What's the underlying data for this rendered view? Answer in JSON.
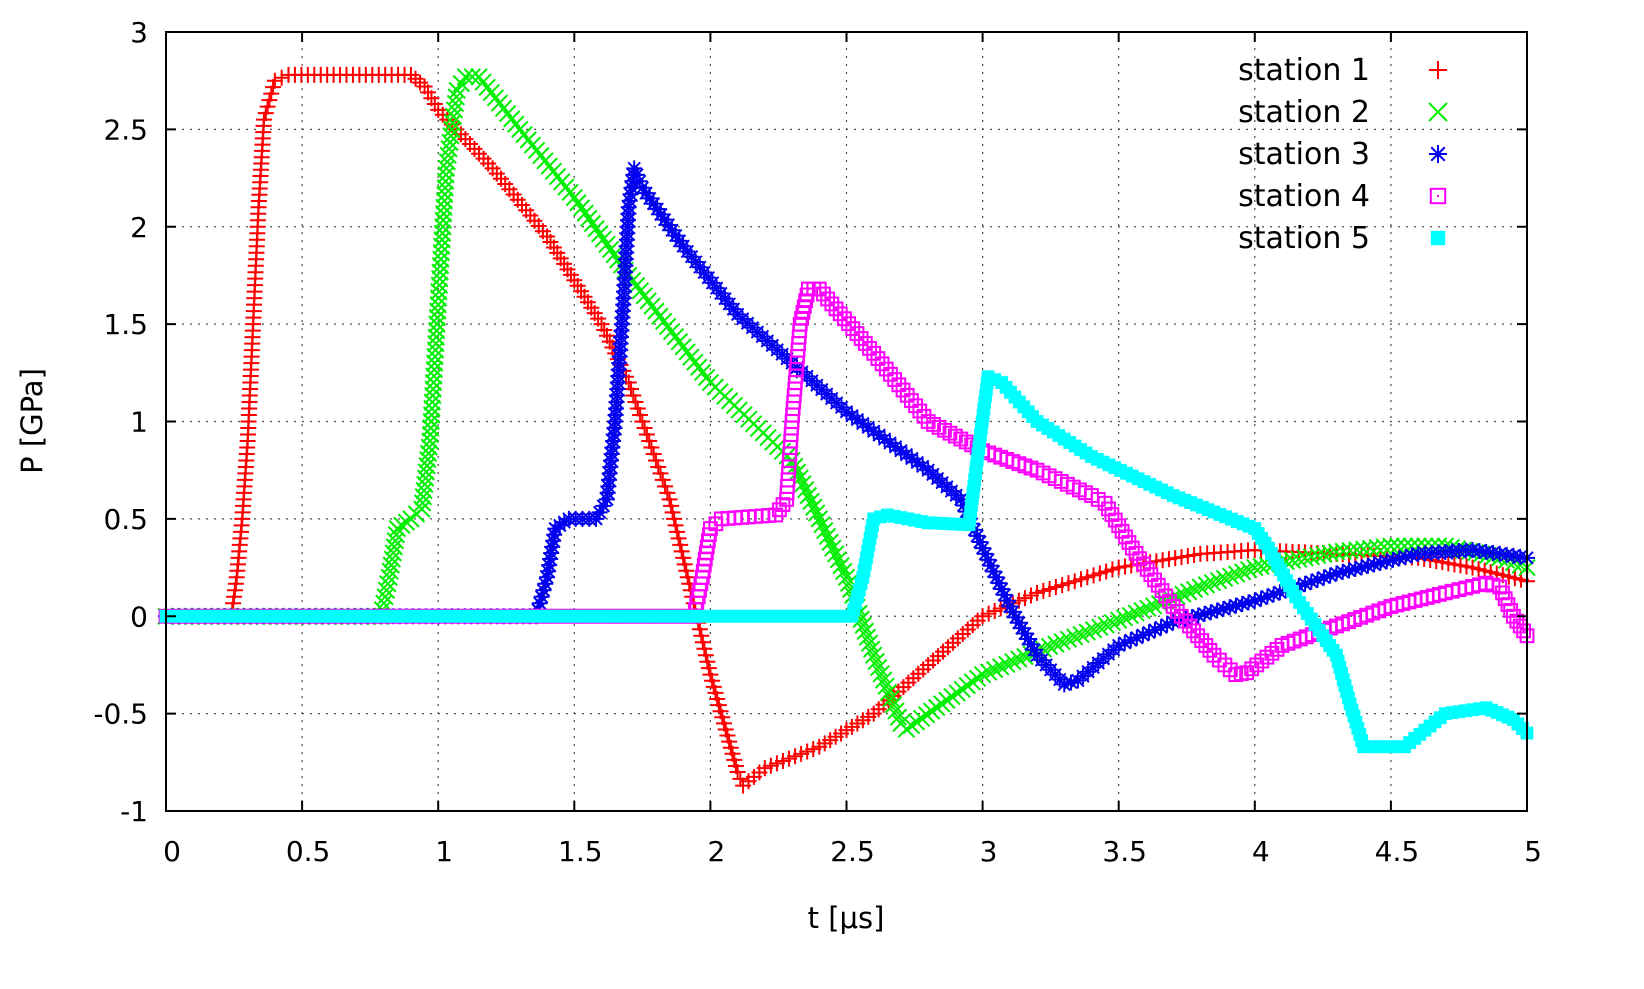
{
  "chart_data": {
    "type": "scatter",
    "xlabel": "t [μs]",
    "ylabel": "P [GPa]",
    "xlim": [
      0,
      5
    ],
    "ylim": [
      -1,
      3
    ],
    "xticks": [
      "0",
      "0.5",
      "1",
      "1.5",
      "2",
      "2.5",
      "3",
      "3.5",
      "4",
      "4.5",
      "5"
    ],
    "yticks": [
      "-1",
      "-0.5",
      "0",
      "0.5",
      "1",
      "1.5",
      "2",
      "2.5",
      "3"
    ],
    "grid": true,
    "legend_position": "top-right",
    "series": [
      {
        "name": "station 1",
        "color": "#ff0000",
        "marker": "plus",
        "points": [
          [
            0,
            0
          ],
          [
            0.24,
            0
          ],
          [
            0.26,
            0.2
          ],
          [
            0.28,
            0.5
          ],
          [
            0.3,
            0.9
          ],
          [
            0.32,
            1.5
          ],
          [
            0.34,
            2.1
          ],
          [
            0.36,
            2.55
          ],
          [
            0.4,
            2.75
          ],
          [
            0.45,
            2.78
          ],
          [
            0.9,
            2.78
          ],
          [
            0.95,
            2.72
          ],
          [
            1.0,
            2.6
          ],
          [
            1.2,
            2.3
          ],
          [
            1.4,
            1.95
          ],
          [
            1.6,
            1.5
          ],
          [
            1.7,
            1.2
          ],
          [
            1.75,
            1.0
          ],
          [
            1.8,
            0.8
          ],
          [
            1.85,
            0.6
          ],
          [
            1.9,
            0.3
          ],
          [
            1.95,
            0.0
          ],
          [
            2.0,
            -0.3
          ],
          [
            2.05,
            -0.55
          ],
          [
            2.1,
            -0.8
          ],
          [
            2.12,
            -0.87
          ],
          [
            2.2,
            -0.78
          ],
          [
            2.4,
            -0.67
          ],
          [
            2.6,
            -0.5
          ],
          [
            2.8,
            -0.25
          ],
          [
            3.0,
            0.0
          ],
          [
            3.2,
            0.12
          ],
          [
            3.5,
            0.25
          ],
          [
            3.8,
            0.32
          ],
          [
            4.0,
            0.34
          ],
          [
            4.3,
            0.32
          ],
          [
            4.6,
            0.3
          ],
          [
            4.8,
            0.25
          ],
          [
            5.0,
            0.18
          ]
        ]
      },
      {
        "name": "station 2",
        "color": "#00ee00",
        "marker": "cross",
        "points": [
          [
            0,
            0
          ],
          [
            0.79,
            0
          ],
          [
            0.82,
            0.2
          ],
          [
            0.85,
            0.45
          ],
          [
            0.9,
            0.5
          ],
          [
            0.94,
            0.55
          ],
          [
            0.97,
            0.9
          ],
          [
            1.0,
            1.6
          ],
          [
            1.03,
            2.3
          ],
          [
            1.07,
            2.7
          ],
          [
            1.1,
            2.77
          ],
          [
            1.15,
            2.77
          ],
          [
            1.3,
            2.5
          ],
          [
            1.5,
            2.15
          ],
          [
            1.7,
            1.75
          ],
          [
            2.0,
            1.2
          ],
          [
            2.3,
            0.8
          ],
          [
            2.4,
            0.5
          ],
          [
            2.5,
            0.2
          ],
          [
            2.6,
            -0.2
          ],
          [
            2.7,
            -0.55
          ],
          [
            2.72,
            -0.58
          ],
          [
            2.85,
            -0.45
          ],
          [
            3.0,
            -0.3
          ],
          [
            3.2,
            -0.18
          ],
          [
            3.5,
            -0.02
          ],
          [
            3.8,
            0.15
          ],
          [
            4.0,
            0.25
          ],
          [
            4.3,
            0.33
          ],
          [
            4.5,
            0.36
          ],
          [
            4.7,
            0.36
          ],
          [
            4.9,
            0.3
          ],
          [
            5.0,
            0.25
          ]
        ]
      },
      {
        "name": "station 3",
        "color": "#0000ee",
        "marker": "star",
        "points": [
          [
            0,
            0
          ],
          [
            1.36,
            0
          ],
          [
            1.4,
            0.2
          ],
          [
            1.43,
            0.45
          ],
          [
            1.48,
            0.5
          ],
          [
            1.58,
            0.5
          ],
          [
            1.62,
            0.6
          ],
          [
            1.65,
            1.0
          ],
          [
            1.68,
            1.6
          ],
          [
            1.7,
            2.1
          ],
          [
            1.72,
            2.3
          ],
          [
            1.75,
            2.2
          ],
          [
            1.9,
            1.9
          ],
          [
            2.1,
            1.55
          ],
          [
            2.5,
            1.05
          ],
          [
            2.8,
            0.75
          ],
          [
            2.92,
            0.6
          ],
          [
            3.0,
            0.35
          ],
          [
            3.1,
            0.05
          ],
          [
            3.2,
            -0.2
          ],
          [
            3.3,
            -0.35
          ],
          [
            3.35,
            -0.33
          ],
          [
            3.5,
            -0.15
          ],
          [
            3.7,
            -0.03
          ],
          [
            4.0,
            0.08
          ],
          [
            4.3,
            0.22
          ],
          [
            4.6,
            0.32
          ],
          [
            4.8,
            0.34
          ],
          [
            5.0,
            0.3
          ]
        ]
      },
      {
        "name": "station 4",
        "color": "#ff00ff",
        "marker": "square-open",
        "points": [
          [
            0,
            0
          ],
          [
            1.94,
            0
          ],
          [
            1.97,
            0.2
          ],
          [
            2.0,
            0.45
          ],
          [
            2.04,
            0.5
          ],
          [
            2.24,
            0.52
          ],
          [
            2.28,
            0.6
          ],
          [
            2.3,
            1.0
          ],
          [
            2.33,
            1.5
          ],
          [
            2.36,
            1.68
          ],
          [
            2.4,
            1.68
          ],
          [
            2.6,
            1.35
          ],
          [
            2.8,
            1.0
          ],
          [
            3.0,
            0.85
          ],
          [
            3.2,
            0.75
          ],
          [
            3.4,
            0.62
          ],
          [
            3.45,
            0.58
          ],
          [
            3.55,
            0.35
          ],
          [
            3.7,
            0.05
          ],
          [
            3.85,
            -0.2
          ],
          [
            3.93,
            -0.3
          ],
          [
            3.97,
            -0.29
          ],
          [
            4.1,
            -0.15
          ],
          [
            4.3,
            -0.05
          ],
          [
            4.5,
            0.05
          ],
          [
            4.7,
            0.12
          ],
          [
            4.85,
            0.17
          ],
          [
            4.9,
            0.15
          ],
          [
            4.95,
            0.0
          ],
          [
            5.0,
            -0.1
          ]
        ]
      },
      {
        "name": "station 5",
        "color": "#00ffff",
        "marker": "square-filled",
        "points": [
          [
            0,
            0
          ],
          [
            2.52,
            0
          ],
          [
            2.56,
            0.2
          ],
          [
            2.6,
            0.5
          ],
          [
            2.65,
            0.52
          ],
          [
            2.8,
            0.48
          ],
          [
            2.95,
            0.47
          ],
          [
            2.98,
            0.8
          ],
          [
            3.02,
            1.23
          ],
          [
            3.07,
            1.2
          ],
          [
            3.2,
            1.0
          ],
          [
            3.4,
            0.82
          ],
          [
            3.7,
            0.62
          ],
          [
            4.0,
            0.45
          ],
          [
            4.05,
            0.35
          ],
          [
            4.15,
            0.1
          ],
          [
            4.25,
            -0.1
          ],
          [
            4.3,
            -0.2
          ],
          [
            4.35,
            -0.45
          ],
          [
            4.4,
            -0.67
          ],
          [
            4.55,
            -0.67
          ],
          [
            4.7,
            -0.5
          ],
          [
            4.85,
            -0.47
          ],
          [
            4.95,
            -0.53
          ],
          [
            5.0,
            -0.6
          ]
        ]
      }
    ]
  }
}
